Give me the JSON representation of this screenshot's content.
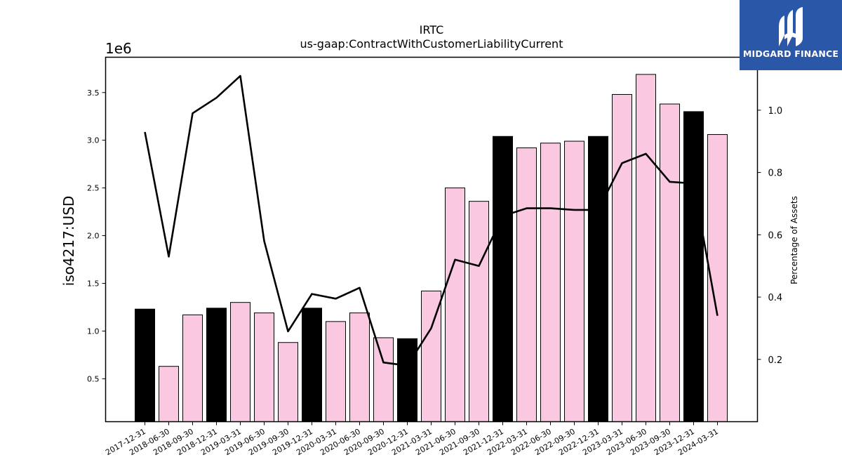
{
  "chart_data": {
    "type": "bar",
    "title": "IRTC",
    "subtitle": "us-gaap:ContractWithCustomerLiabilityCurrent",
    "ylabel": "iso4217:USD",
    "y_scale_label": "1e6",
    "y2label": "Percentage of Assets",
    "ylim": [
      0.05,
      3.87
    ],
    "y2lim": [
      0.0,
      1.17
    ],
    "yticks": [
      "0.5",
      "1.0",
      "1.5",
      "2.0",
      "2.5",
      "3.0",
      "3.5"
    ],
    "y2ticks": [
      "0.2",
      "0.4",
      "0.6",
      "0.8",
      "1.0"
    ],
    "categories": [
      "2017-12-31",
      "2018-06-30",
      "2018-09-30",
      "2018-12-31",
      "2019-03-31",
      "2019-06-30",
      "2019-09-30",
      "2019-12-31",
      "2020-03-31",
      "2020-06-30",
      "2020-09-30",
      "2020-12-31",
      "2021-03-31",
      "2021-06-30",
      "2021-09-30",
      "2021-12-31",
      "2022-03-31",
      "2022-06-30",
      "2022-09-30",
      "2022-12-31",
      "2023-03-31",
      "2023-06-30",
      "2023-09-30",
      "2023-12-31",
      "2024-03-31"
    ],
    "series": [
      {
        "type": "bar",
        "values": [
          1.23,
          0.63,
          1.17,
          1.24,
          1.3,
          1.19,
          0.88,
          1.24,
          1.1,
          1.19,
          0.93,
          0.92,
          1.42,
          2.5,
          2.36,
          3.04,
          2.92,
          2.97,
          2.99,
          3.04,
          3.48,
          3.69,
          3.38,
          3.3,
          3.06
        ],
        "colors": [
          "#000000",
          "#fbc8e2",
          "#fbc8e2",
          "#000000",
          "#fbc8e2",
          "#fbc8e2",
          "#fbc8e2",
          "#000000",
          "#fbc8e2",
          "#fbc8e2",
          "#fbc8e2",
          "#000000",
          "#fbc8e2",
          "#fbc8e2",
          "#fbc8e2",
          "#000000",
          "#fbc8e2",
          "#fbc8e2",
          "#fbc8e2",
          "#000000",
          "#fbc8e2",
          "#fbc8e2",
          "#fbc8e2",
          "#000000",
          "#fbc8e2"
        ]
      },
      {
        "type": "line",
        "axis": "right",
        "color": "#000000",
        "values": [
          0.93,
          0.53,
          0.99,
          1.04,
          1.11,
          0.58,
          0.29,
          0.41,
          0.395,
          0.43,
          0.19,
          0.18,
          0.3,
          0.52,
          0.5,
          0.66,
          0.685,
          0.685,
          0.68,
          0.68,
          0.83,
          0.86,
          0.77,
          0.765,
          0.34
        ]
      }
    ],
    "grid": false,
    "legend": "none"
  },
  "logo": {
    "text": "MIDGARD FINANCE",
    "background": "#2a57a8"
  }
}
